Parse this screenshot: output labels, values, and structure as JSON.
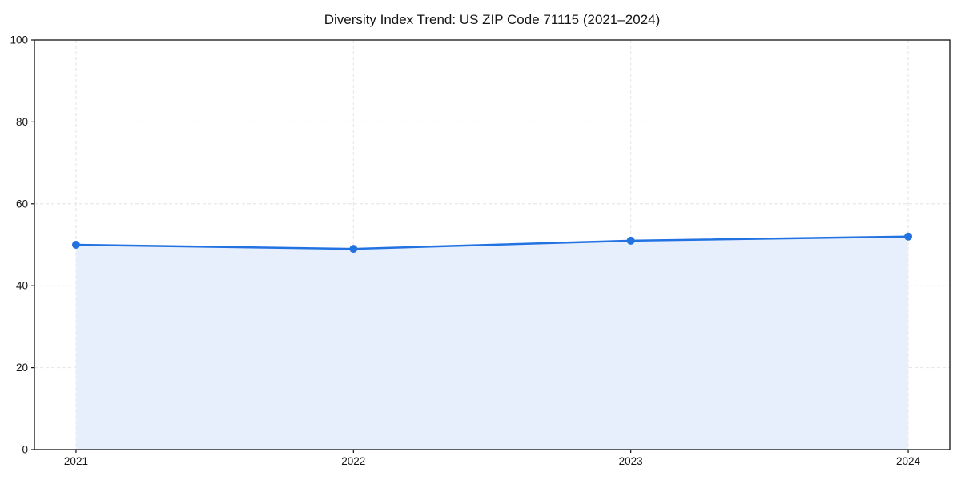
{
  "figure": {
    "background": "#ffffff"
  },
  "chart_data": {
    "type": "line",
    "title": "Diversity Index Trend: US ZIP Code 71115 (2021–2024)",
    "x": [
      "2021",
      "2022",
      "2023",
      "2024"
    ],
    "series": [
      {
        "name": "Diversity Index",
        "values": [
          50,
          49,
          51,
          52
        ]
      }
    ],
    "xlabel": "",
    "ylabel": "",
    "ylim": [
      0,
      100
    ],
    "yticks": [
      0,
      20,
      40,
      60,
      80,
      100
    ],
    "grid": true,
    "grid_style": "dashed",
    "legend": "none",
    "area_fill_under_line": true,
    "marker": "circle",
    "line_color": "#2272E2",
    "marker_color": "#2272E2",
    "fill_color": "#E7EFFC",
    "grid_color": "#E4E4E4",
    "spine_color": "#111111"
  }
}
